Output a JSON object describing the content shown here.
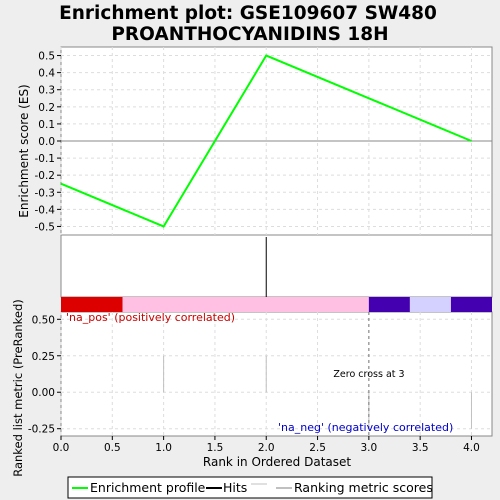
{
  "chart_data": {
    "title_line1": "Enrichment plot: GSE109607 SW480",
    "title_line2": "PROANTHOCYANIDINS 18H",
    "type": "line",
    "x_axis": {
      "label": "Rank in Ordered Dataset",
      "range": [
        0,
        4.2
      ],
      "ticks": [
        0.0,
        0.5,
        1.0,
        1.5,
        2.0,
        2.5,
        3.0,
        3.5,
        4.0
      ],
      "tick_labels": [
        "0.0",
        "0.5",
        "1.0",
        "1.5",
        "2.0",
        "2.5",
        "3.0",
        "3.5",
        "4.0"
      ]
    },
    "es_panel": {
      "ylabel": "Enrichment score (ES)",
      "ylim": [
        -0.55,
        0.55
      ],
      "ticks": [
        0.5,
        0.4,
        0.3,
        0.2,
        0.1,
        0.0,
        -0.1,
        -0.2,
        -0.3,
        -0.4,
        -0.5
      ],
      "tick_labels": [
        "0.5",
        "0.4",
        "0.3",
        "0.2",
        "0.1",
        "0.0",
        "-0.1",
        "-0.2",
        "-0.3",
        "-0.4",
        "-0.5"
      ],
      "grid": true,
      "series": [
        {
          "name": "Enrichment profile",
          "color": "#00ff00",
          "x": [
            0,
            1,
            2,
            3,
            4
          ],
          "y": [
            -0.25,
            -0.5,
            0.5,
            0.25,
            0.0
          ]
        }
      ]
    },
    "hits_panel": {
      "hits": [
        2
      ],
      "color": "#000000"
    },
    "color_bar": {
      "segments": [
        {
          "from": 0.0,
          "to": 0.6,
          "color": "#dd0000"
        },
        {
          "from": 0.6,
          "to": 3.0,
          "color": "#ffc0e4"
        },
        {
          "from": 3.0,
          "to": 3.4,
          "color": "#4400b0"
        },
        {
          "from": 3.4,
          "to": 3.8,
          "color": "#d4d0ff"
        },
        {
          "from": 3.8,
          "to": 4.2,
          "color": "#4400b0"
        }
      ]
    },
    "metric_panel": {
      "ylabel": "Ranked list metric (PreRanked)",
      "ylim": [
        -0.3,
        0.55
      ],
      "ticks": [
        0.5,
        0.25,
        0.0,
        -0.25
      ],
      "tick_labels": [
        "0.50",
        "0.25",
        "0.00",
        "-0.25"
      ],
      "grid": true,
      "bars": [
        {
          "x": 1,
          "value": 0.25
        },
        {
          "x": 2,
          "value": 0.25
        },
        {
          "x": 3,
          "value": -0.25
        },
        {
          "x": 4,
          "value": -0.25
        }
      ],
      "bar_color": "#c0c0c0",
      "zero_cross_x": 3,
      "annotations": {
        "pos_label": "'na_pos' (positively correlated)",
        "pos_color": "#cc0000",
        "neg_label": "'na_neg' (negatively correlated)",
        "neg_color": "#0000cc",
        "zero_cross": "Zero cross at 3"
      }
    },
    "legend": [
      {
        "label": "Enrichment profile",
        "color": "#00ff00"
      },
      {
        "label": "Hits",
        "color": "#000000"
      },
      {
        "label": "Ranking metric scores",
        "color": "#c0c0c0"
      }
    ]
  }
}
